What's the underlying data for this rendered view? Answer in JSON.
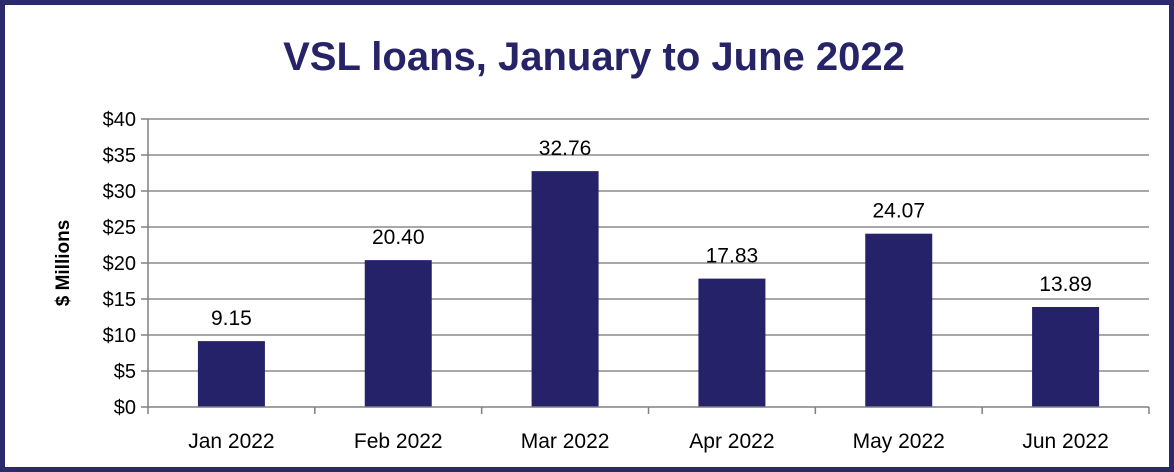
{
  "chart_data": {
    "type": "bar",
    "title": "VSL loans, January to June 2022",
    "xlabel": "",
    "ylabel": "$ Millions",
    "categories": [
      "Jan 2022",
      "Feb 2022",
      "Mar 2022",
      "Apr 2022",
      "May 2022",
      "Jun 2022"
    ],
    "values": [
      9.15,
      20.4,
      32.76,
      17.83,
      24.07,
      13.89
    ],
    "value_labels": [
      "9.15",
      "20.40",
      "32.76",
      "17.83",
      "24.07",
      "13.89"
    ],
    "ylim": [
      0,
      40
    ],
    "yticks": [
      0,
      5,
      10,
      15,
      20,
      25,
      30,
      35,
      40
    ],
    "ytick_labels": [
      "$0",
      "$5",
      "$10",
      "$15",
      "$20",
      "$25",
      "$30",
      "$35",
      "$40"
    ],
    "grid": true,
    "legend": "none",
    "colors": {
      "bar": "#25226a",
      "border": "#2b2a6b",
      "title": "#262467",
      "grid": "#8c8c8c",
      "axis": "#808080"
    }
  }
}
